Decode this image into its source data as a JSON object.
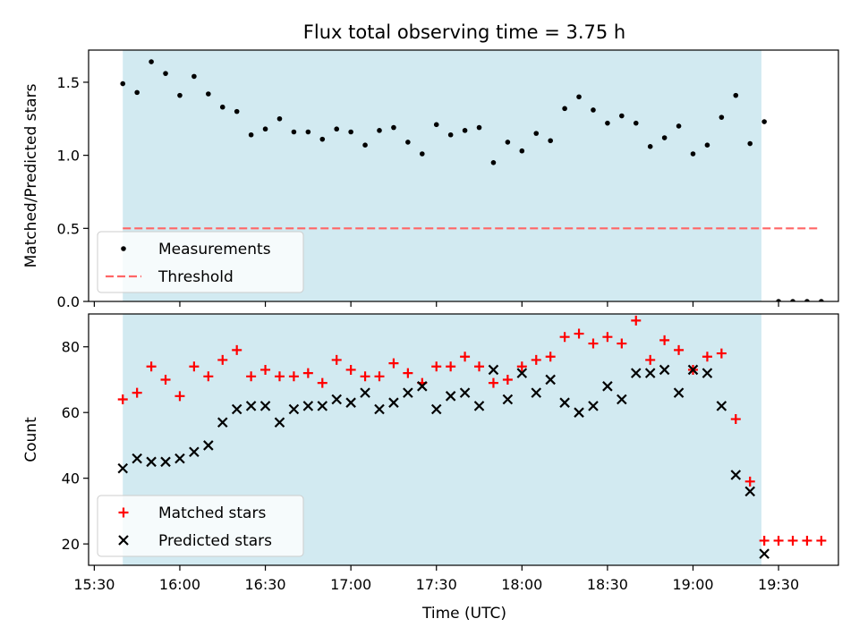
{
  "figure": {
    "title": "Flux total observing time = 3.75 h",
    "xlabel": "Time (UTC)"
  },
  "chart_data": [
    {
      "type": "scatter",
      "panel": "top",
      "ylabel": "Matched/Predicted stars",
      "ylim": [
        0,
        1.72
      ],
      "yticks": [
        0.0,
        0.5,
        1.0,
        1.5
      ],
      "ytick_labels": [
        "0.0",
        "0.5",
        "1.0",
        "1.5"
      ],
      "xlim": [
        "15:28",
        "19:51"
      ],
      "shaded_span": [
        "15:40",
        "19:24"
      ],
      "shade_color": "#add8e6",
      "legend_loc": "lower-left",
      "series": [
        {
          "name": "Measurements",
          "marker": "dot",
          "color": "#000000",
          "x": [
            "15:40",
            "15:45",
            "15:50",
            "15:55",
            "16:00",
            "16:05",
            "16:10",
            "16:15",
            "16:20",
            "16:25",
            "16:30",
            "16:35",
            "16:40",
            "16:45",
            "16:50",
            "16:55",
            "17:00",
            "17:05",
            "17:10",
            "17:15",
            "17:20",
            "17:25",
            "17:30",
            "17:35",
            "17:40",
            "17:45",
            "17:50",
            "17:55",
            "18:00",
            "18:05",
            "18:10",
            "18:15",
            "18:20",
            "18:25",
            "18:30",
            "18:35",
            "18:40",
            "18:45",
            "18:50",
            "18:55",
            "19:00",
            "19:05",
            "19:10",
            "19:15",
            "19:20",
            "19:25",
            "19:30",
            "19:35",
            "19:40",
            "19:45"
          ],
          "y": [
            1.49,
            1.43,
            1.64,
            1.56,
            1.41,
            1.54,
            1.42,
            1.33,
            1.3,
            1.14,
            1.18,
            1.25,
            1.16,
            1.16,
            1.11,
            1.18,
            1.16,
            1.07,
            1.17,
            1.19,
            1.09,
            1.01,
            1.21,
            1.14,
            1.17,
            1.19,
            0.95,
            1.09,
            1.03,
            1.15,
            1.1,
            1.32,
            1.4,
            1.31,
            1.22,
            1.27,
            1.22,
            1.06,
            1.12,
            1.2,
            1.01,
            1.07,
            1.26,
            1.41,
            1.08,
            1.23,
            0.0,
            0.0,
            0.0,
            0.0
          ]
        },
        {
          "name": "Threshold",
          "style": "dashed",
          "color": "#ff6666",
          "x": [
            "15:40",
            "19:44"
          ],
          "y": [
            0.5,
            0.5
          ]
        }
      ]
    },
    {
      "type": "scatter",
      "panel": "bottom",
      "ylabel": "Count",
      "ylim": [
        13.5,
        90
      ],
      "yticks": [
        20,
        40,
        60,
        80
      ],
      "ytick_labels": [
        "20",
        "40",
        "60",
        "80"
      ],
      "xlim": [
        "15:28",
        "19:51"
      ],
      "xticks": [
        "15:30",
        "16:00",
        "16:30",
        "17:00",
        "17:30",
        "18:00",
        "18:30",
        "19:00",
        "19:30"
      ],
      "shaded_span": [
        "15:40",
        "19:24"
      ],
      "shade_color": "#add8e6",
      "legend_loc": "lower-left",
      "series": [
        {
          "name": "Matched stars",
          "marker": "plus",
          "color": "#ff0000",
          "x": [
            "15:40",
            "15:45",
            "15:50",
            "15:55",
            "16:00",
            "16:05",
            "16:10",
            "16:15",
            "16:20",
            "16:25",
            "16:30",
            "16:35",
            "16:40",
            "16:45",
            "16:50",
            "16:55",
            "17:00",
            "17:05",
            "17:10",
            "17:15",
            "17:20",
            "17:25",
            "17:30",
            "17:35",
            "17:40",
            "17:45",
            "17:50",
            "17:55",
            "18:00",
            "18:05",
            "18:10",
            "18:15",
            "18:20",
            "18:25",
            "18:30",
            "18:35",
            "18:40",
            "18:45",
            "18:50",
            "18:55",
            "19:00",
            "19:05",
            "19:10",
            "19:15",
            "19:20",
            "19:25",
            "19:30",
            "19:35",
            "19:40",
            "19:45"
          ],
          "y": [
            64,
            66,
            74,
            70,
            65,
            74,
            71,
            76,
            79,
            71,
            73,
            71,
            71,
            72,
            69,
            76,
            73,
            71,
            71,
            75,
            72,
            69,
            74,
            74,
            77,
            74,
            69,
            70,
            74,
            76,
            77,
            83,
            84,
            81,
            83,
            81,
            88,
            76,
            82,
            79,
            73,
            77,
            78,
            58,
            39,
            21,
            21,
            21,
            21,
            21
          ]
        },
        {
          "name": "Predicted stars",
          "marker": "x",
          "color": "#000000",
          "x": [
            "15:40",
            "15:45",
            "15:50",
            "15:55",
            "16:00",
            "16:05",
            "16:10",
            "16:15",
            "16:20",
            "16:25",
            "16:30",
            "16:35",
            "16:40",
            "16:45",
            "16:50",
            "16:55",
            "17:00",
            "17:05",
            "17:10",
            "17:15",
            "17:20",
            "17:25",
            "17:30",
            "17:35",
            "17:40",
            "17:45",
            "17:50",
            "17:55",
            "18:00",
            "18:05",
            "18:10",
            "18:15",
            "18:20",
            "18:25",
            "18:30",
            "18:35",
            "18:40",
            "18:45",
            "18:50",
            "18:55",
            "19:00",
            "19:05",
            "19:10",
            "19:15",
            "19:20",
            "19:25"
          ],
          "y": [
            43,
            46,
            45,
            45,
            46,
            48,
            50,
            57,
            61,
            62,
            62,
            57,
            61,
            62,
            62,
            64,
            63,
            66,
            61,
            63,
            66,
            68,
            61,
            65,
            66,
            62,
            73,
            64,
            72,
            66,
            70,
            63,
            60,
            62,
            68,
            64,
            72,
            72,
            73,
            66,
            73,
            72,
            62,
            41,
            36,
            17
          ]
        }
      ]
    }
  ]
}
